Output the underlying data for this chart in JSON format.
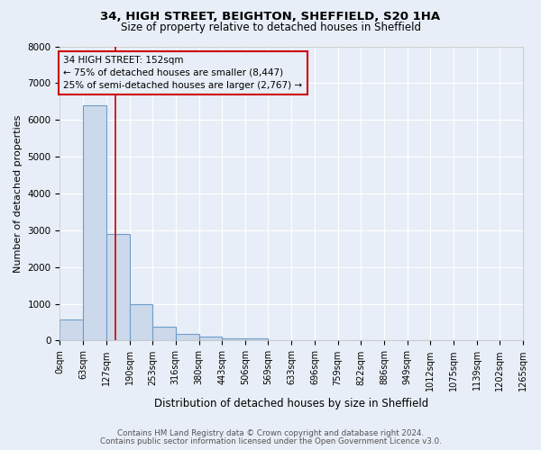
{
  "title1": "34, HIGH STREET, BEIGHTON, SHEFFIELD, S20 1HA",
  "title2": "Size of property relative to detached houses in Sheffield",
  "xlabel": "Distribution of detached houses by size in Sheffield",
  "ylabel": "Number of detached properties",
  "footnote1": "Contains HM Land Registry data © Crown copyright and database right 2024.",
  "footnote2": "Contains public sector information licensed under the Open Government Licence v3.0.",
  "bin_edges": [
    0,
    63,
    127,
    190,
    253,
    316,
    380,
    443,
    506,
    569,
    633,
    696,
    759,
    822,
    886,
    949,
    1012,
    1075,
    1139,
    1202,
    1265
  ],
  "bar_heights": [
    580,
    6400,
    2900,
    1000,
    380,
    170,
    110,
    70,
    50,
    15,
    8,
    5,
    3,
    2,
    1,
    1,
    0,
    0,
    0,
    0
  ],
  "bar_color": "#ccd9ea",
  "bar_edge_color": "#6d9ecc",
  "property_size": 152,
  "vline_color": "#cc0000",
  "annotation_line1": "34 HIGH STREET: 152sqm",
  "annotation_line2": "← 75% of detached houses are smaller (8,447)",
  "annotation_line3": "25% of semi-detached houses are larger (2,767) →",
  "annotation_box_color": "#cc0000",
  "ylim": [
    0,
    8000
  ],
  "background_color": "#e8eef7",
  "grid_color": "#ffffff",
  "title1_fontsize": 9.5,
  "title2_fontsize": 8.5,
  "tick_fontsize": 7,
  "ylabel_fontsize": 8,
  "xlabel_fontsize": 8.5
}
